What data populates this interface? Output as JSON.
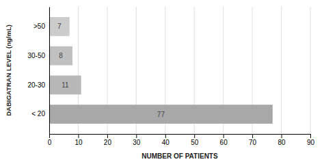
{
  "chart_data": {
    "type": "bar",
    "orientation": "horizontal",
    "categories": [
      "< 20",
      "20-30",
      "30-50",
      ">50"
    ],
    "values": [
      77,
      11,
      8,
      7
    ],
    "colors": [
      "#a8a8a8",
      "#b8b8b8",
      "#c0c0c0",
      "#cccccc"
    ],
    "xlabel": "NUMBER OF PATIENTS",
    "ylabel": "DABIGATRAN LEVEL (ng/mL)",
    "xlim": [
      0,
      90
    ],
    "xticks": [
      0,
      10,
      20,
      30,
      40,
      50,
      60,
      70,
      80,
      90
    ],
    "grid": true,
    "data_labels": true
  }
}
